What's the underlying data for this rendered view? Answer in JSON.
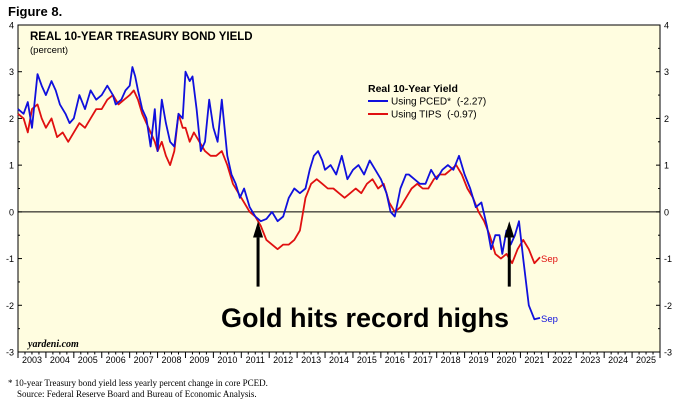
{
  "figure_label": "Figure 8.",
  "footnote": {
    "line1": "*   10-year Treasury bond yield less yearly percent change in core PCED.",
    "line2": "Source: Federal Reserve Board and Bureau of Economic Analysis."
  },
  "chart_data": {
    "type": "line",
    "title": "REAL 10-YEAR TREASURY BOND YIELD",
    "subtitle": "(percent)",
    "legend_title": "Real 10-Year Yield",
    "legend_position": "top-center",
    "watermark": "yardeni.com",
    "annotation": "Gold hits record highs",
    "end_labels": [
      "Sep",
      "Sep"
    ],
    "xlim": [
      2003,
      2026
    ],
    "ylim": [
      -3,
      4
    ],
    "x_ticks": [
      "2003",
      "2004",
      "2005",
      "2006",
      "2007",
      "2008",
      "2009",
      "2010",
      "2011",
      "2012",
      "2013",
      "2014",
      "2015",
      "2016",
      "2017",
      "2018",
      "2019",
      "2020",
      "2021",
      "2022",
      "2023",
      "2024",
      "2025"
    ],
    "y_ticks": [
      "-3",
      "-2",
      "-1",
      "0",
      "1",
      "2",
      "3",
      "4"
    ],
    "zero_line": true,
    "background": "#fffde0",
    "arrows_at_x": [
      2011.6,
      2020.6
    ],
    "series": [
      {
        "name": "Using PCED*",
        "legend_value": "(-2.27)",
        "color": "#1010dd",
        "x": [
          2003.0,
          2003.2,
          2003.35,
          2003.5,
          2003.7,
          2003.85,
          2004.0,
          2004.2,
          2004.35,
          2004.5,
          2004.7,
          2004.85,
          2005.0,
          2005.2,
          2005.4,
          2005.6,
          2005.8,
          2006.0,
          2006.2,
          2006.4,
          2006.5,
          2006.7,
          2006.85,
          2007.0,
          2007.1,
          2007.2,
          2007.3,
          2007.45,
          2007.6,
          2007.75,
          2007.9,
          2008.0,
          2008.15,
          2008.3,
          2008.45,
          2008.6,
          2008.75,
          2008.9,
          2009.0,
          2009.15,
          2009.25,
          2009.4,
          2009.55,
          2009.7,
          2009.85,
          2010.0,
          2010.15,
          2010.3,
          2010.5,
          2010.65,
          2010.8,
          2010.95,
          2011.1,
          2011.3,
          2011.5,
          2011.7,
          2011.9,
          2012.1,
          2012.3,
          2012.5,
          2012.7,
          2012.9,
          2013.1,
          2013.3,
          2013.45,
          2013.6,
          2013.75,
          2013.9,
          2014.0,
          2014.2,
          2014.4,
          2014.6,
          2014.8,
          2015.0,
          2015.2,
          2015.4,
          2015.6,
          2015.8,
          2016.0,
          2016.2,
          2016.35,
          2016.5,
          2016.7,
          2016.9,
          2017.0,
          2017.2,
          2017.4,
          2017.6,
          2017.8,
          2018.0,
          2018.2,
          2018.4,
          2018.6,
          2018.8,
          2019.0,
          2019.2,
          2019.4,
          2019.6,
          2019.8,
          2019.95,
          2020.1,
          2020.25,
          2020.35,
          2020.5,
          2020.65,
          2020.8,
          2020.95,
          2021.1,
          2021.3,
          2021.5,
          2021.7
        ],
        "y": [
          2.2,
          2.1,
          2.35,
          1.8,
          2.95,
          2.7,
          2.5,
          2.8,
          2.6,
          2.3,
          2.1,
          1.9,
          2.0,
          2.5,
          2.2,
          2.6,
          2.4,
          2.5,
          2.7,
          2.5,
          2.3,
          2.4,
          2.6,
          2.7,
          3.1,
          2.9,
          2.6,
          2.2,
          2.0,
          1.4,
          2.2,
          1.3,
          2.4,
          1.9,
          1.5,
          1.4,
          2.1,
          2.0,
          3.0,
          2.8,
          2.9,
          2.2,
          1.3,
          1.5,
          2.4,
          1.8,
          1.5,
          2.4,
          1.2,
          0.8,
          0.6,
          0.3,
          0.5,
          0.1,
          -0.1,
          -0.2,
          -0.15,
          0.0,
          -0.2,
          -0.1,
          0.3,
          0.5,
          0.4,
          0.5,
          0.9,
          1.2,
          1.3,
          1.1,
          0.9,
          1.0,
          0.8,
          1.2,
          0.7,
          0.9,
          1.0,
          0.8,
          1.1,
          0.9,
          0.7,
          0.4,
          0.0,
          -0.1,
          0.5,
          0.8,
          0.8,
          0.7,
          0.6,
          0.6,
          0.9,
          0.7,
          0.9,
          1.0,
          0.9,
          1.2,
          0.8,
          0.5,
          0.1,
          0.2,
          -0.3,
          -0.8,
          -0.5,
          -0.5,
          -0.9,
          -0.4,
          -0.7,
          -0.5,
          -0.2,
          -1.0,
          -2.0,
          -2.3,
          -2.27
        ]
      },
      {
        "name": "Using TIPS",
        "legend_value": "(-0.97)",
        "color": "#e01010",
        "x": [
          2003.0,
          2003.2,
          2003.35,
          2003.5,
          2003.7,
          2003.85,
          2004.0,
          2004.2,
          2004.4,
          2004.6,
          2004.8,
          2005.0,
          2005.2,
          2005.4,
          2005.6,
          2005.8,
          2006.0,
          2006.2,
          2006.4,
          2006.6,
          2006.8,
          2007.0,
          2007.15,
          2007.3,
          2007.45,
          2007.6,
          2007.75,
          2007.9,
          2008.0,
          2008.15,
          2008.3,
          2008.45,
          2008.6,
          2008.75,
          2008.9,
          2009.0,
          2009.15,
          2009.3,
          2009.5,
          2009.7,
          2009.9,
          2010.1,
          2010.3,
          2010.5,
          2010.7,
          2010.9,
          2011.1,
          2011.3,
          2011.5,
          2011.7,
          2011.9,
          2012.1,
          2012.3,
          2012.5,
          2012.7,
          2012.9,
          2013.1,
          2013.3,
          2013.5,
          2013.7,
          2013.9,
          2014.1,
          2014.3,
          2014.5,
          2014.7,
          2014.9,
          2015.1,
          2015.3,
          2015.5,
          2015.7,
          2015.9,
          2016.1,
          2016.3,
          2016.5,
          2016.7,
          2016.9,
          2017.1,
          2017.3,
          2017.5,
          2017.7,
          2017.9,
          2018.1,
          2018.3,
          2018.5,
          2018.7,
          2018.9,
          2019.1,
          2019.3,
          2019.5,
          2019.7,
          2019.9,
          2020.1,
          2020.3,
          2020.5,
          2020.7,
          2020.9,
          2021.1,
          2021.3,
          2021.5,
          2021.7
        ],
        "y": [
          2.1,
          2.0,
          1.7,
          2.2,
          2.3,
          2.0,
          1.8,
          2.0,
          1.6,
          1.7,
          1.5,
          1.7,
          1.9,
          1.8,
          2.0,
          2.2,
          2.2,
          2.4,
          2.5,
          2.3,
          2.4,
          2.5,
          2.6,
          2.4,
          2.1,
          1.9,
          1.7,
          1.5,
          1.3,
          1.5,
          1.2,
          1.0,
          1.3,
          2.1,
          1.8,
          1.8,
          1.5,
          1.7,
          1.5,
          1.3,
          1.2,
          1.2,
          1.3,
          1.0,
          0.6,
          0.4,
          0.2,
          0.0,
          -0.1,
          -0.3,
          -0.6,
          -0.7,
          -0.8,
          -0.7,
          -0.7,
          -0.6,
          -0.4,
          0.3,
          0.6,
          0.7,
          0.6,
          0.5,
          0.5,
          0.4,
          0.3,
          0.4,
          0.5,
          0.4,
          0.6,
          0.7,
          0.5,
          0.6,
          0.2,
          0.0,
          0.1,
          0.3,
          0.5,
          0.6,
          0.5,
          0.5,
          0.7,
          0.8,
          0.8,
          0.9,
          1.0,
          0.8,
          0.5,
          0.3,
          0.0,
          -0.2,
          -0.5,
          -0.9,
          -1.0,
          -0.9,
          -1.1,
          -0.8,
          -0.6,
          -0.8,
          -1.1,
          -0.97
        ]
      }
    ]
  }
}
